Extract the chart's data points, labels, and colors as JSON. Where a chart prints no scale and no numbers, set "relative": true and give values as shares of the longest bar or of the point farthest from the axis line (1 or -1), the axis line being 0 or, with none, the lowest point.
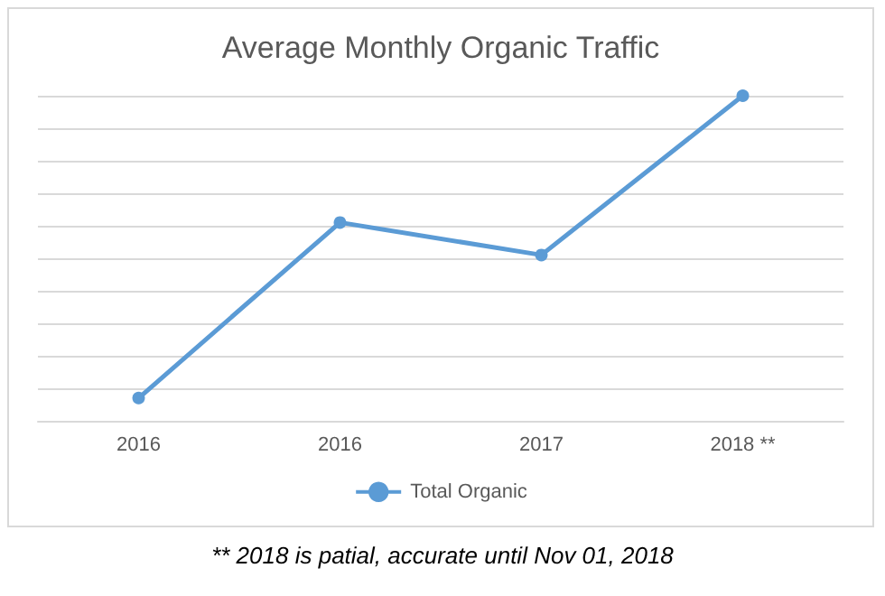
{
  "chart_data": {
    "type": "line",
    "title": "Average Monthly Organic Traffic",
    "categories": [
      "2016",
      "2016",
      "2017",
      "2018 **"
    ],
    "series": [
      {
        "name": "Total Organic",
        "color": "#5b9bd5",
        "values": [
          0.07,
          0.61,
          0.51,
          1
        ]
      }
    ],
    "relative": true,
    "grid": "y",
    "legend": "bottom",
    "marker": "circle",
    "line_style": "solid",
    "annotations": [
      "** 2018 is patial, accurate until Nov 01, 2018"
    ]
  }
}
